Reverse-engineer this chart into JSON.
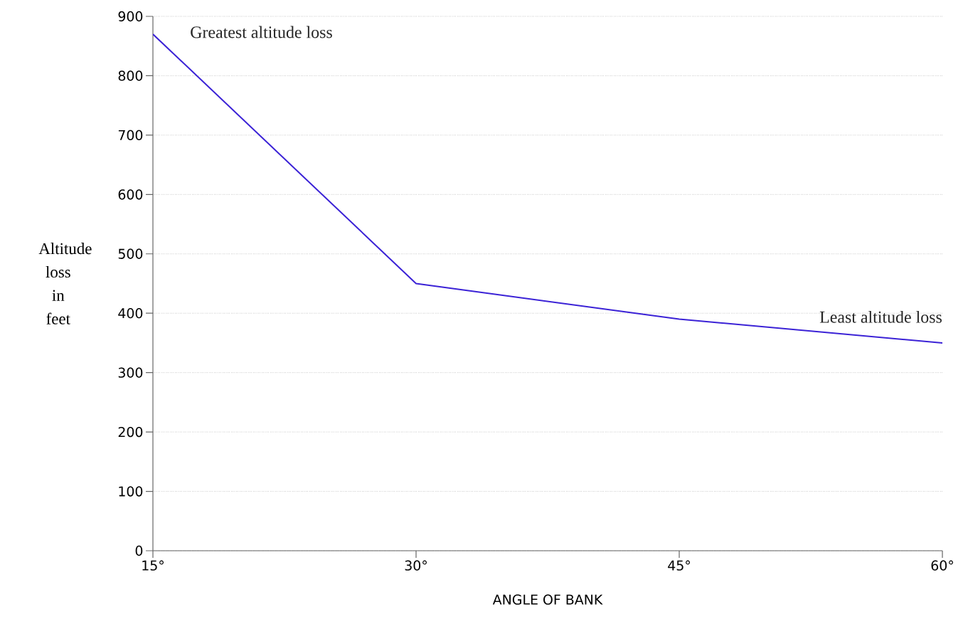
{
  "chart_data": {
    "type": "line",
    "xlabel": "ANGLE OF BANK",
    "ylabel": "Altitude loss in feet",
    "x": [
      15,
      30,
      45,
      60
    ],
    "series": [
      {
        "color": "#3b22d6",
        "values": [
          870,
          450,
          390,
          350
        ]
      }
    ],
    "xlim": [
      15,
      60
    ],
    "xticks": [
      {
        "value": 15,
        "label": "15°"
      },
      {
        "value": 30,
        "label": "30°"
      },
      {
        "value": 45,
        "label": "45°"
      },
      {
        "value": 60,
        "label": "60°"
      }
    ],
    "ylim": [
      0,
      900
    ],
    "yticks": [
      0,
      100,
      200,
      300,
      400,
      500,
      600,
      700,
      800,
      900
    ],
    "grid": "y",
    "marker": "none",
    "line_style": "solid",
    "annotations": [
      {
        "text": "Greatest altitude loss",
        "x": 15,
        "y": 870
      },
      {
        "text": "Least altitude loss",
        "x": 60,
        "y": 350
      }
    ]
  }
}
